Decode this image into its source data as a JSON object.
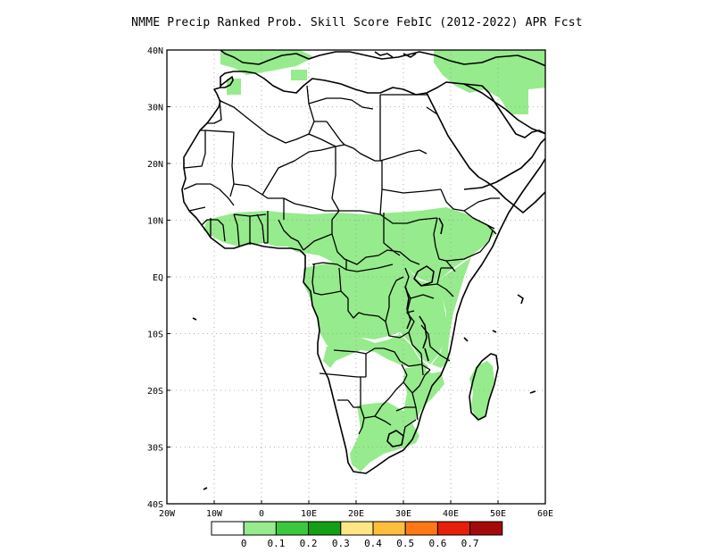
{
  "title": "NMME Precip Ranked Prob. Skill Score FebIC (2012-2022) APR Fcst",
  "map": {
    "lon_range": [
      -20,
      60
    ],
    "lat_range": [
      -40,
      40
    ],
    "x_ticks": [
      {
        "value": -20,
        "label": "20W"
      },
      {
        "value": -10,
        "label": "10W"
      },
      {
        "value": 0,
        "label": "0"
      },
      {
        "value": 10,
        "label": "10E"
      },
      {
        "value": 20,
        "label": "20E"
      },
      {
        "value": 30,
        "label": "30E"
      },
      {
        "value": 40,
        "label": "40E"
      },
      {
        "value": 50,
        "label": "50E"
      },
      {
        "value": 60,
        "label": "60E"
      }
    ],
    "y_ticks": [
      {
        "value": 40,
        "label": "40N"
      },
      {
        "value": 30,
        "label": "30N"
      },
      {
        "value": 20,
        "label": "20N"
      },
      {
        "value": 10,
        "label": "10N"
      },
      {
        "value": 0,
        "label": "EQ"
      },
      {
        "value": -10,
        "label": "10S"
      },
      {
        "value": -20,
        "label": "20S"
      },
      {
        "value": -30,
        "label": "30S"
      },
      {
        "value": -40,
        "label": "40S"
      }
    ],
    "grid": true,
    "coastline_color": "#000000",
    "skill_fill_color": "#96eb8c"
  },
  "colorbar": {
    "colors": [
      "#ffffff",
      "#96eb8c",
      "#3cc83c",
      "#14a014",
      "#ffe682",
      "#ffbe3c",
      "#ff7814",
      "#e61e0a",
      "#a50a0a"
    ],
    "labels": [
      "0",
      "0.1",
      "0.2",
      "0.3",
      "0.4",
      "0.5",
      "0.6",
      "0.7"
    ]
  }
}
